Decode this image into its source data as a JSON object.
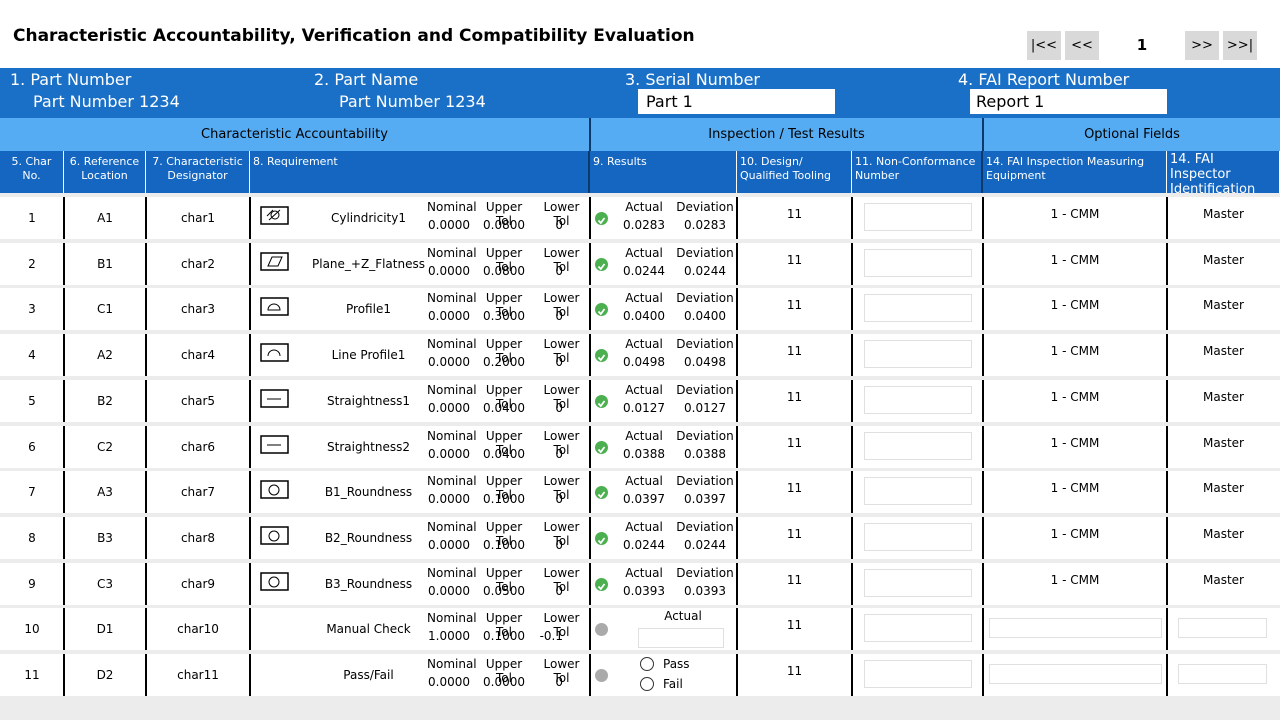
{
  "header": {
    "title": "Characteristic Accountability, Verification and Compatibility Evaluation",
    "nav": {
      "first": "|<<",
      "prev": "<<",
      "page": "1",
      "next": ">>",
      "last": ">>|"
    }
  },
  "fields": [
    {
      "label": "1. Part Number",
      "value": "Part Number 1234"
    },
    {
      "label": "2. Part Name",
      "value": "Part Number 1234"
    },
    {
      "label": "3. Serial Number",
      "value": "Part 1"
    },
    {
      "label": "4. FAI Report Number",
      "value": "Report 1"
    }
  ],
  "groups": [
    "Characteristic Accountability",
    "Inspection / Test Results",
    "Optional Fields"
  ],
  "columns": [
    "5. Char No.",
    "6. Reference Location",
    "7. Characteristic Designator",
    "8. Requirement",
    "9. Results",
    "10. Design/ Qualified Tooling",
    "11. Non-Conformance Number",
    "14. FAI Inspection Measuring Equipment",
    "14. FAI Inspector Identification"
  ],
  "labels": {
    "nominal": "Nominal",
    "upper_tol": "Upper Tol",
    "lower_tol": "Lower Tol",
    "actual": "Actual",
    "deviation": "Deviation"
  },
  "rows": [
    {
      "char_no": "1",
      "reference": "A1",
      "designator": "char1",
      "requirement": "Cylindricity1",
      "nominal": "0.0000",
      "upper_tol": "0.0800",
      "lower_tol": "0",
      "actual": "0.0283",
      "deviation": "0.0283",
      "tooling": "11",
      "equipment": "1 - CMM",
      "inspector": "Master"
    },
    {
      "char_no": "2",
      "reference": "B1",
      "designator": "char2",
      "requirement": "Plane_+Z_Flatness",
      "nominal": "0.0000",
      "upper_tol": "0.0800",
      "lower_tol": "0",
      "actual": "0.0244",
      "deviation": "0.0244",
      "tooling": "11",
      "equipment": "1 - CMM",
      "inspector": "Master"
    },
    {
      "char_no": "3",
      "reference": "C1",
      "designator": "char3",
      "requirement": "Profile1",
      "nominal": "0.0000",
      "upper_tol": "0.3000",
      "lower_tol": "0",
      "actual": "0.0400",
      "deviation": "0.0400",
      "tooling": "11",
      "equipment": "1 - CMM",
      "inspector": "Master"
    },
    {
      "char_no": "4",
      "reference": "A2",
      "designator": "char4",
      "requirement": "Line Profile1",
      "nominal": "0.0000",
      "upper_tol": "0.2000",
      "lower_tol": "0",
      "actual": "0.0498",
      "deviation": "0.0498",
      "tooling": "11",
      "equipment": "1 - CMM",
      "inspector": "Master"
    },
    {
      "char_no": "5",
      "reference": "B2",
      "designator": "char5",
      "requirement": "Straightness1",
      "nominal": "0.0000",
      "upper_tol": "0.0400",
      "lower_tol": "0",
      "actual": "0.0127",
      "deviation": "0.0127",
      "tooling": "11",
      "equipment": "1 - CMM",
      "inspector": "Master"
    },
    {
      "char_no": "6",
      "reference": "C2",
      "designator": "char6",
      "requirement": "Straightness2",
      "nominal": "0.0000",
      "upper_tol": "0.0400",
      "lower_tol": "0",
      "actual": "0.0388",
      "deviation": "0.0388",
      "tooling": "11",
      "equipment": "1 - CMM",
      "inspector": "Master"
    },
    {
      "char_no": "7",
      "reference": "A3",
      "designator": "char7",
      "requirement": "B1_Roundness",
      "nominal": "0.0000",
      "upper_tol": "0.1000",
      "lower_tol": "0",
      "actual": "0.0397",
      "deviation": "0.0397",
      "tooling": "11",
      "equipment": "1 - CMM",
      "inspector": "Master"
    },
    {
      "char_no": "8",
      "reference": "B3",
      "designator": "char8",
      "requirement": "B2_Roundness",
      "nominal": "0.0000",
      "upper_tol": "0.1000",
      "lower_tol": "0",
      "actual": "0.0244",
      "deviation": "0.0244",
      "tooling": "11",
      "equipment": "1 - CMM",
      "inspector": "Master"
    },
    {
      "char_no": "9",
      "reference": "C3",
      "designator": "char9",
      "requirement": "B3_Roundness",
      "nominal": "0.0000",
      "upper_tol": "0.0500",
      "lower_tol": "0",
      "actual": "0.0393",
      "deviation": "0.0393",
      "tooling": "11",
      "equipment": "1 - CMM",
      "inspector": "Master"
    },
    {
      "char_no": "10",
      "reference": "D1",
      "designator": "char10",
      "requirement": "Manual Check",
      "nominal": "1.0000",
      "upper_tol": "0.1000",
      "lower_tol": "-0.1",
      "tooling": "11"
    },
    {
      "char_no": "11",
      "reference": "D2",
      "designator": "char11",
      "requirement": "Pass/Fail",
      "nominal": "0.0000",
      "upper_tol": "0.0000",
      "lower_tol": "0",
      "options": [
        "Pass",
        "Fail"
      ],
      "tooling": "11"
    }
  ]
}
